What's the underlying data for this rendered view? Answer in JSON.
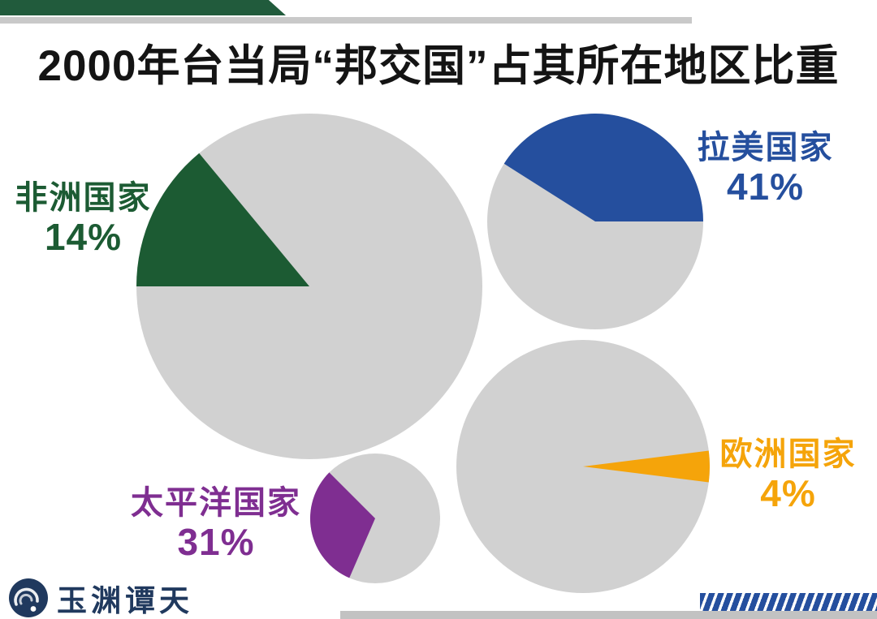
{
  "page": {
    "background_color": "#FFFFFF"
  },
  "header": {
    "banner_green_color": "#215B3C",
    "banner_gray_color": "#C9C9C9"
  },
  "chart_data": {
    "type": "pie",
    "title": "2000年台当局“邦交国”占其所在地区比重",
    "layout": "four separate single-highlight pies on white background, gray = remainder of region",
    "legend_position": "none",
    "remainder_color": "#D1D1D1",
    "pies": [
      {
        "region": "非洲国家",
        "pct": 14,
        "pct_label": "14%",
        "color": "#1C5B33",
        "start_deg": 270,
        "label_position": "left-of-pie"
      },
      {
        "region": "拉美国家",
        "pct": 41,
        "pct_label": "41%",
        "color": "#254F9E",
        "start_deg": 302.4,
        "label_position": "right-of-pie"
      },
      {
        "region": "太平洋国家",
        "pct": 31,
        "pct_label": "31%",
        "color": "#7F2E91",
        "start_deg": 203.4,
        "label_position": "left-of-pie"
      },
      {
        "region": "欧洲国家",
        "pct": 4,
        "pct_label": "4%",
        "color": "#F5A40A",
        "start_deg": 82.8,
        "label_position": "right-of-pie"
      }
    ]
  },
  "footer": {
    "logo_text": "玉渊谭天",
    "logo_color": "#20395E",
    "stripes_color": "#254F9E",
    "bottom_bar_color": "#C2C2C2"
  }
}
